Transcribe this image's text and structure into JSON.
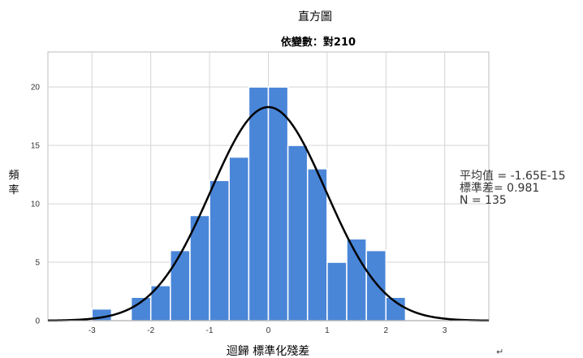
{
  "chart_data": {
    "type": "bar",
    "title": "直方圖",
    "subtitle": "依變數：對210",
    "xlabel": "迴歸 標準化殘差",
    "ylabel": "頻率",
    "xlim": [
      -3.75,
      3.75
    ],
    "ylim": [
      0,
      23
    ],
    "x_ticks": [
      -3,
      -2,
      -1,
      0,
      1,
      2,
      3
    ],
    "y_ticks": [
      0,
      5,
      10,
      15,
      20
    ],
    "bin_width": 0.333,
    "bins": [
      {
        "start": -3.0,
        "count": 1
      },
      {
        "start": -2.667,
        "count": 0
      },
      {
        "start": -2.333,
        "count": 2
      },
      {
        "start": -2.0,
        "count": 3
      },
      {
        "start": -1.667,
        "count": 6
      },
      {
        "start": -1.333,
        "count": 9
      },
      {
        "start": -1.0,
        "count": 12
      },
      {
        "start": -0.667,
        "count": 14
      },
      {
        "start": -0.333,
        "count": 20
      },
      {
        "start": 0.0,
        "count": 20
      },
      {
        "start": 0.333,
        "count": 15
      },
      {
        "start": 0.667,
        "count": 13
      },
      {
        "start": 1.0,
        "count": 5
      },
      {
        "start": 1.333,
        "count": 7
      },
      {
        "start": 1.667,
        "count": 6
      },
      {
        "start": 2.0,
        "count": 2
      }
    ],
    "normal_curve": {
      "mean": -1.65e-15,
      "sd": 0.981,
      "n": 135
    },
    "grid": true,
    "bar_color": "#4a86d8",
    "bar_edge_color": "#ffffff",
    "curve_color": "#000000"
  },
  "stats": {
    "mean_label": "平均值 = -1.65E-15",
    "sd_label": "標準差= 0.981",
    "n_label": "N = 135"
  },
  "return_mark": "↵"
}
